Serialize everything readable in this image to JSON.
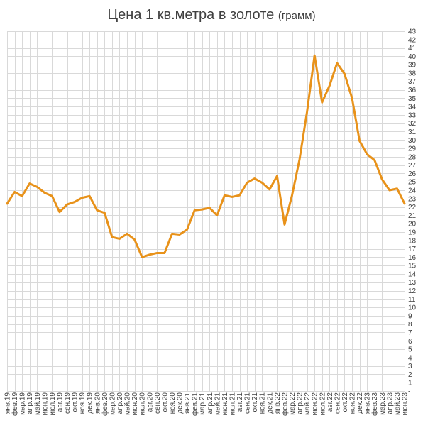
{
  "chart_data": {
    "type": "line",
    "title": "Цена 1 кв.метра в золоте",
    "subtitle": "(грамм)",
    "xlabel": "",
    "ylabel": "",
    "ylim": [
      0,
      43
    ],
    "yticks": [
      "-",
      "1",
      "2",
      "3",
      "4",
      "5",
      "6",
      "7",
      "8",
      "9",
      "10",
      "11",
      "12",
      "13",
      "14",
      "15",
      "16",
      "17",
      "18",
      "19",
      "20",
      "21",
      "22",
      "23",
      "24",
      "25",
      "26",
      "27",
      "28",
      "29",
      "30",
      "31",
      "32",
      "33",
      "34",
      "35",
      "36",
      "37",
      "38",
      "39",
      "40",
      "41",
      "42",
      "43"
    ],
    "grid": true,
    "legend": "none",
    "categories": [
      "янв.19",
      "фев.19",
      "мар.19",
      "апр.19",
      "май.19",
      "июн.19",
      "июл.19",
      "авг.19",
      "сен.19",
      "окт.19",
      "ноя.19",
      "дек.19",
      "янв.20",
      "фев.20",
      "мар.20",
      "апр.20",
      "май.20",
      "июн.20",
      "июл.20",
      "авг.20",
      "сен.20",
      "окт.20",
      "ноя.20",
      "дек.20",
      "янв.21",
      "фев.21",
      "мар.21",
      "апр.21",
      "май.21",
      "июн.21",
      "июл.21",
      "авг.21",
      "сен.21",
      "окт.21",
      "ноя.21",
      "дек.21",
      "янв.22",
      "фев.22",
      "мар.22",
      "апр.22",
      "май.22",
      "июн.22",
      "июл.22",
      "авг.22",
      "сен.22",
      "окт.22",
      "ноя.22",
      "дек.22",
      "янв.23",
      "фев.23",
      "мар.23",
      "апр.23",
      "май.23",
      "июн.23"
    ],
    "series": [
      {
        "values": [
          22.4,
          23.8,
          23.3,
          24.8,
          24.4,
          23.7,
          23.3,
          21.4,
          22.3,
          22.6,
          23.1,
          23.3,
          21.6,
          21.3,
          18.4,
          18.2,
          18.8,
          18.1,
          16.0,
          16.3,
          16.5,
          16.5,
          18.8,
          18.7,
          19.3,
          21.6,
          21.7,
          21.9,
          21.0,
          23.4,
          23.2,
          23.4,
          24.9,
          25.4,
          24.9,
          24.1,
          25.7,
          19.9,
          23.4,
          27.7,
          33.4,
          40.1,
          34.5,
          36.5,
          39.2,
          37.9,
          35.0,
          29.9,
          28.3,
          27.6,
          25.3,
          24.0,
          24.2,
          22.4
        ],
        "color": "#e8921a"
      }
    ]
  }
}
